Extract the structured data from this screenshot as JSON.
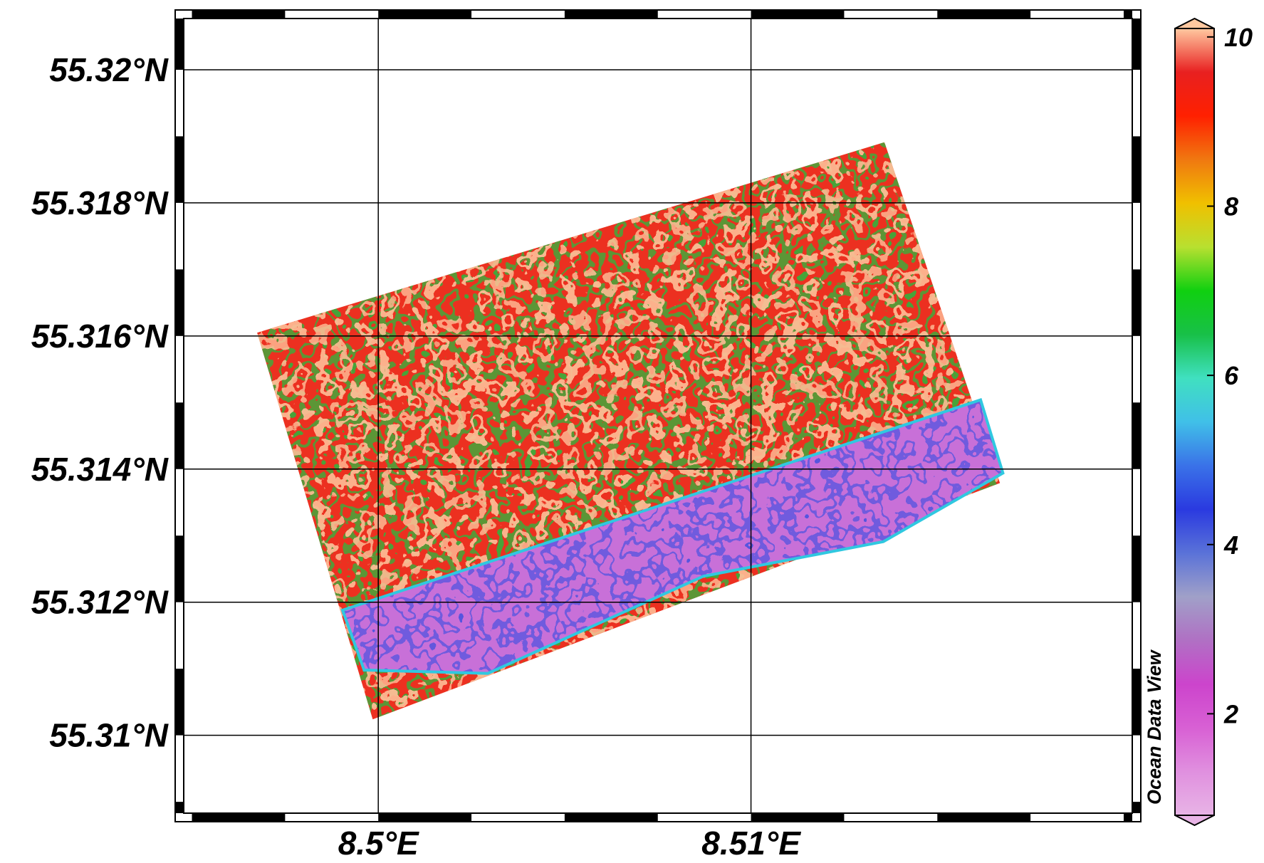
{
  "watermark": "Ocean Data View",
  "map": {
    "lon_ticks": [
      "8.5°E",
      "8.51°E"
    ],
    "lat_ticks": [
      "55.32°N",
      "55.318°N",
      "55.316°N",
      "55.314°N",
      "55.312°N",
      "55.31°N"
    ],
    "lon_range": [
      8.49478,
      8.52023
    ],
    "lat_range": [
      55.30883,
      55.32077
    ],
    "grid_lons": [
      8.5,
      8.51
    ],
    "grid_lats": [
      55.32,
      55.318,
      55.316,
      55.314,
      55.312,
      55.31
    ],
    "survey_corners": [
      [
        8.49675,
        55.31605
      ],
      [
        8.51358,
        55.31891
      ],
      [
        8.51668,
        55.31379
      ],
      [
        8.49985,
        55.31024
      ]
    ],
    "low_value_band": [
      [
        8.49904,
        55.31188
      ],
      [
        8.51616,
        55.31504
      ],
      [
        8.51676,
        55.31394
      ],
      [
        8.51355,
        55.31291
      ],
      [
        8.50872,
        55.31239
      ],
      [
        8.50294,
        55.31093
      ],
      [
        8.49962,
        55.31098
      ]
    ]
  },
  "colorbar": {
    "ticks": [
      "10",
      "8",
      "6",
      "4",
      "2"
    ],
    "tick_values": [
      10,
      8,
      6,
      4,
      2
    ],
    "range": [
      0.8,
      10.1
    ],
    "colors": [
      "#e8b4e6",
      "#e090df",
      "#d860d4",
      "#cc44cc",
      "#b070c4",
      "#a0a0c8",
      "#5a72d8",
      "#2a3ae0",
      "#3a72e8",
      "#40c0e8",
      "#40e0c0",
      "#18c048",
      "#10d010",
      "#b8e030",
      "#f0c000",
      "#f07810",
      "#ff2000",
      "#e82020",
      "#ffc8a0"
    ]
  }
}
